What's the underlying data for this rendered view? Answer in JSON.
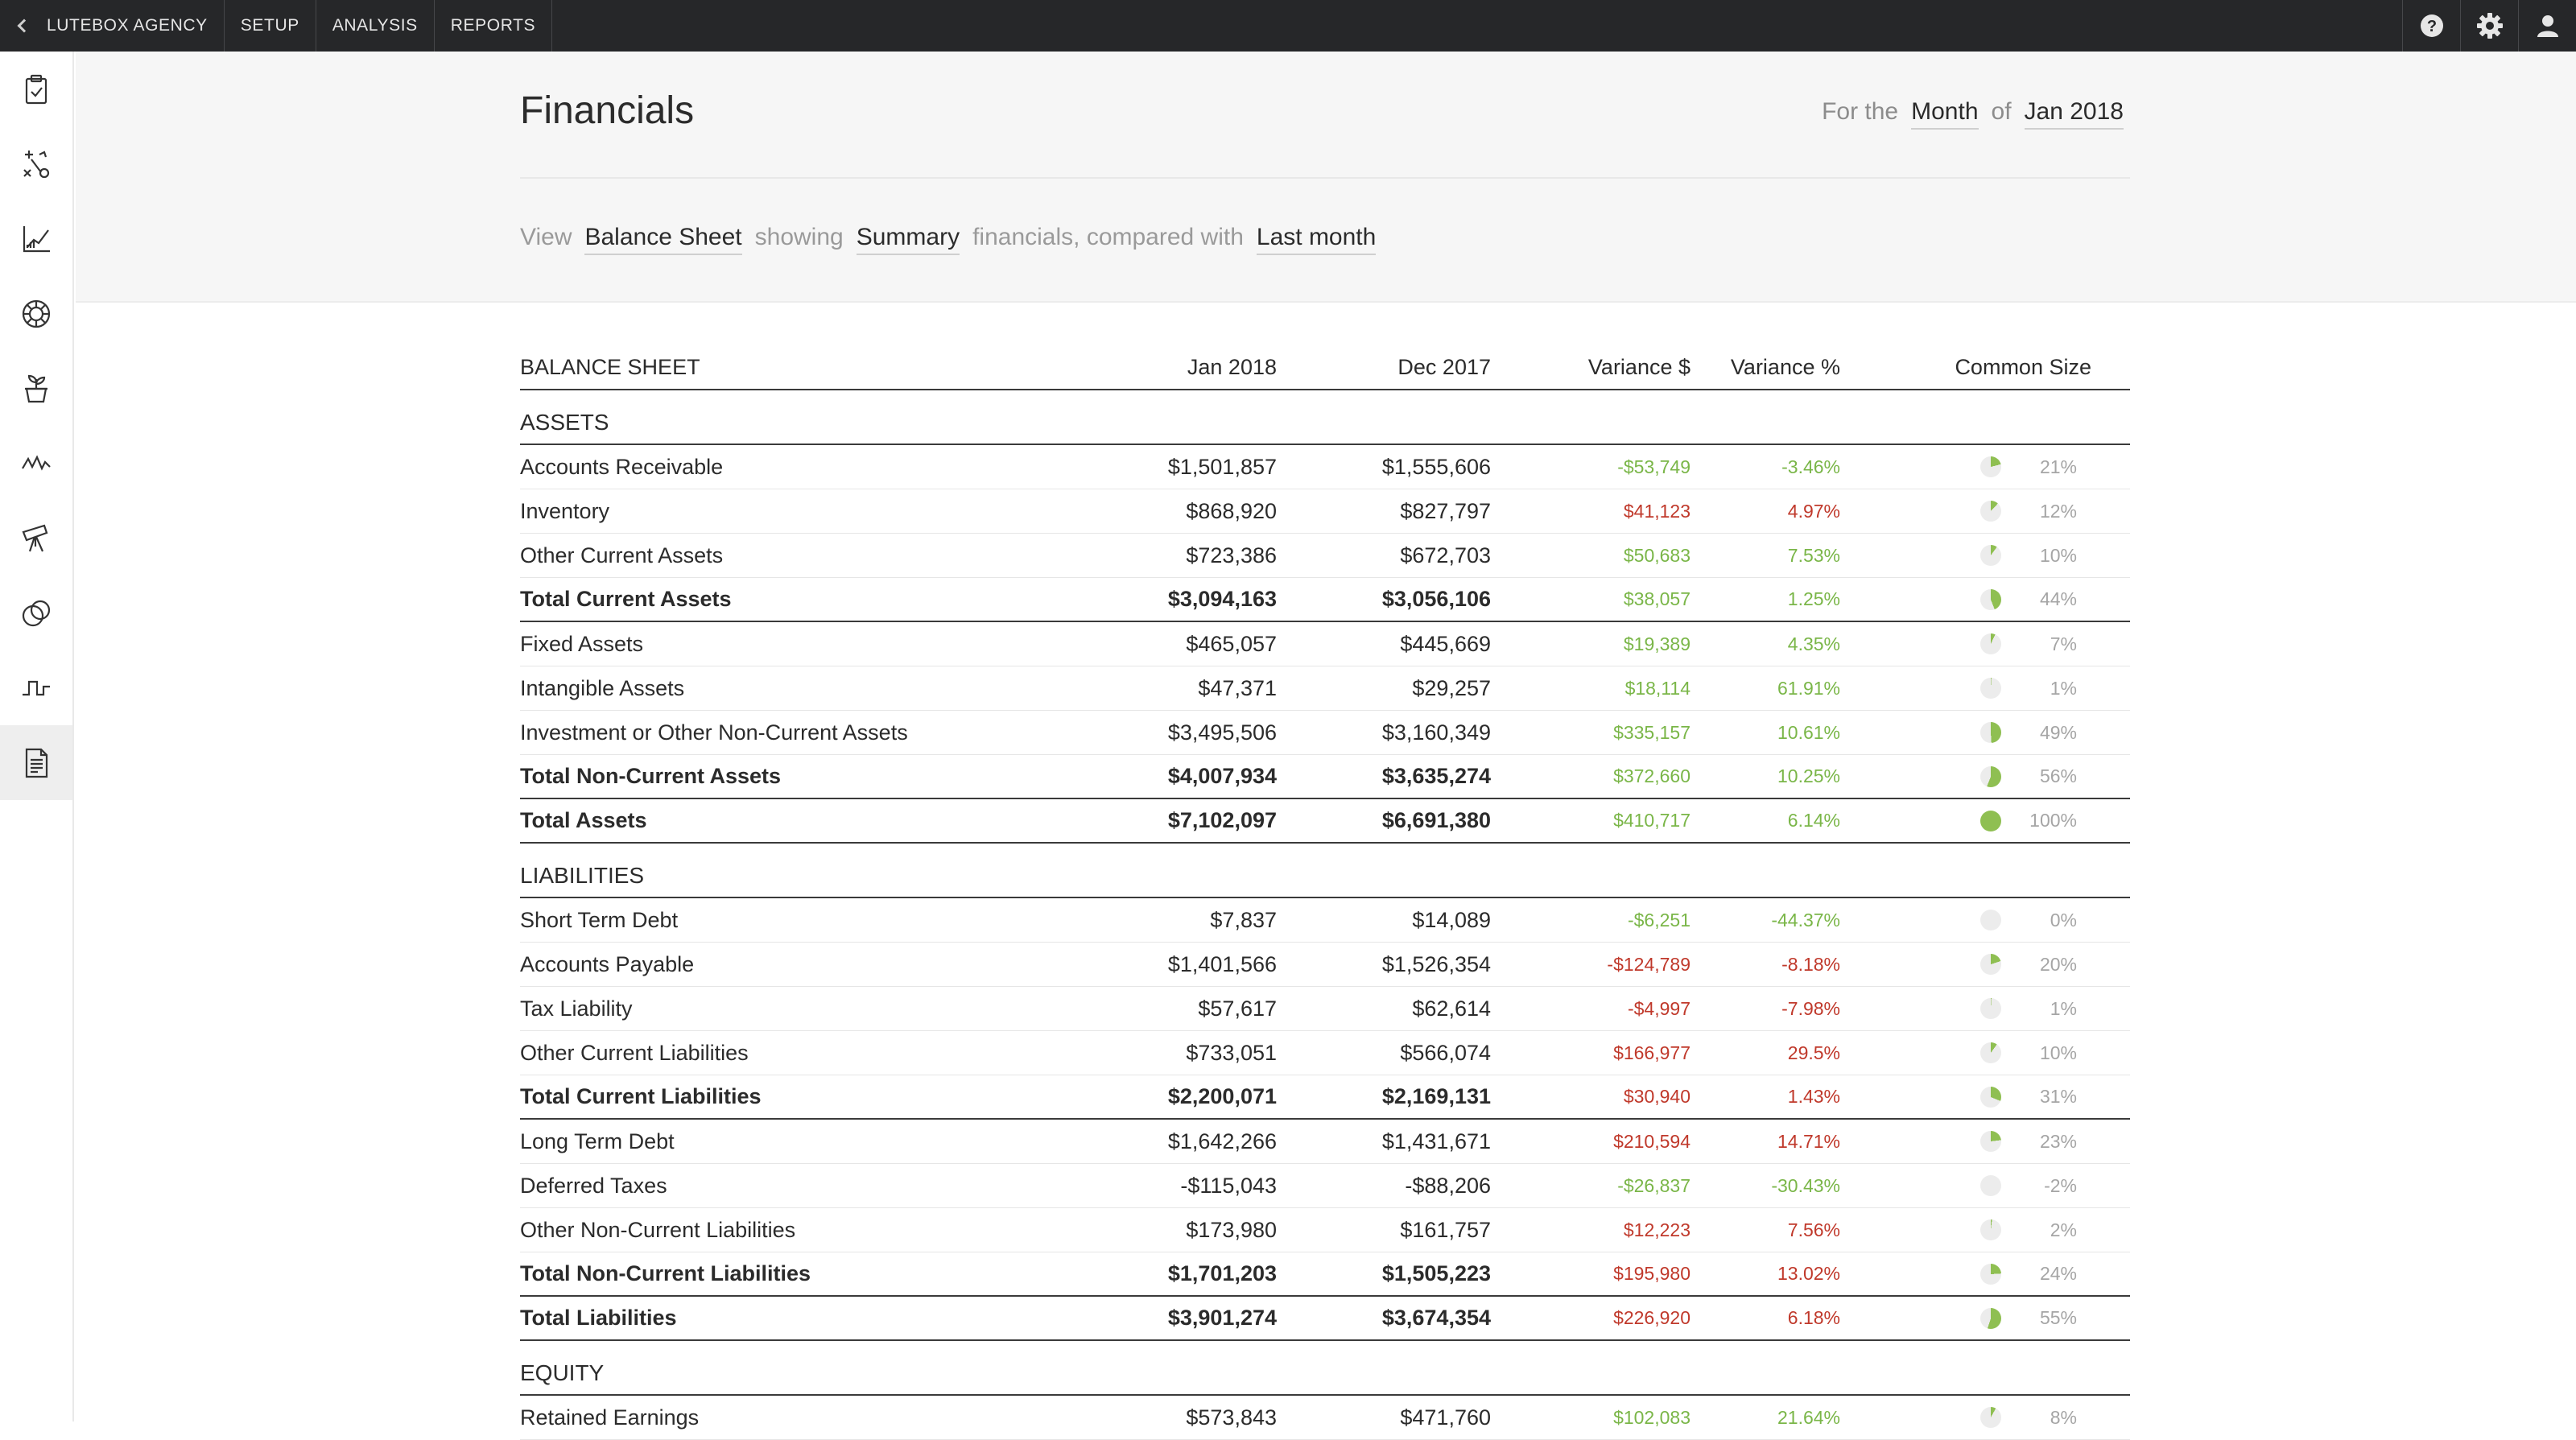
{
  "nav": {
    "back_label": "LUTEBOX AGENCY",
    "items": [
      "SETUP",
      "ANALYSIS",
      "REPORTS"
    ]
  },
  "top_icons": [
    "help-icon",
    "gear-icon",
    "user-icon"
  ],
  "sidebar_icons": [
    "clipboard-check-icon",
    "strategy-icon",
    "line-chart-icon",
    "dashboard-gauge-icon",
    "plant-pot-icon",
    "pulse-line-icon",
    "telescope-icon",
    "venn-circles-icon",
    "step-wave-icon",
    "report-document-icon"
  ],
  "header": {
    "title": "Financials",
    "period": {
      "prefix": "For the",
      "unit": "Month",
      "mid": "of",
      "value": "Jan 2018"
    },
    "view": {
      "prefix": "View",
      "report": "Balance Sheet",
      "showing": "showing",
      "mode": "Summary",
      "suffix": "financials, compared with",
      "compare": "Last month"
    }
  },
  "colors": {
    "negative": "#c0392b",
    "positive": "#7ab648",
    "pie_fill": "#8fbf52",
    "pie_bg": "#ececec"
  },
  "table": {
    "columns": [
      "BALANCE SHEET",
      "Jan 2018",
      "Dec 2017",
      "Variance $",
      "Variance %",
      "Common Size"
    ],
    "rows": [
      {
        "type": "section",
        "label": "ASSETS"
      },
      {
        "type": "item",
        "label": "Accounts Receivable",
        "cur": "$1,501,857",
        "prev": "$1,555,606",
        "var": "-$53,749",
        "pct": "-3.46%",
        "good": true,
        "cs": "21%",
        "share": 0.21
      },
      {
        "type": "item",
        "label": "Inventory",
        "cur": "$868,920",
        "prev": "$827,797",
        "var": "$41,123",
        "pct": "4.97%",
        "good": false,
        "cs": "12%",
        "share": 0.12
      },
      {
        "type": "item",
        "label": "Other Current Assets",
        "cur": "$723,386",
        "prev": "$672,703",
        "var": "$50,683",
        "pct": "7.53%",
        "good": true,
        "cs": "10%",
        "share": 0.1
      },
      {
        "type": "total",
        "label": "Total Current Assets",
        "cur": "$3,094,163",
        "prev": "$3,056,106",
        "var": "$38,057",
        "pct": "1.25%",
        "good": true,
        "cs": "44%",
        "share": 0.44
      },
      {
        "type": "item",
        "label": "Fixed Assets",
        "cur": "$465,057",
        "prev": "$445,669",
        "var": "$19,389",
        "pct": "4.35%",
        "good": true,
        "cs": "7%",
        "share": 0.07
      },
      {
        "type": "item",
        "label": "Intangible Assets",
        "cur": "$47,371",
        "prev": "$29,257",
        "var": "$18,114",
        "pct": "61.91%",
        "good": true,
        "cs": "1%",
        "share": 0.01
      },
      {
        "type": "item",
        "label": "Investment or Other Non-Current Assets",
        "cur": "$3,495,506",
        "prev": "$3,160,349",
        "var": "$335,157",
        "pct": "10.61%",
        "good": true,
        "cs": "49%",
        "share": 0.49
      },
      {
        "type": "total",
        "label": "Total Non-Current Assets",
        "cur": "$4,007,934",
        "prev": "$3,635,274",
        "var": "$372,660",
        "pct": "10.25%",
        "good": true,
        "cs": "56%",
        "share": 0.56
      },
      {
        "type": "total",
        "label": "Total Assets",
        "cur": "$7,102,097",
        "prev": "$6,691,380",
        "var": "$410,717",
        "pct": "6.14%",
        "good": true,
        "cs": "100%",
        "share": 1.0
      },
      {
        "type": "section",
        "label": "LIABILITIES"
      },
      {
        "type": "item",
        "label": "Short Term Debt",
        "cur": "$7,837",
        "prev": "$14,089",
        "var": "-$6,251",
        "pct": "-44.37%",
        "good": true,
        "cs": "0%",
        "share": 0.0
      },
      {
        "type": "item",
        "label": "Accounts Payable",
        "cur": "$1,401,566",
        "prev": "$1,526,354",
        "var": "-$124,789",
        "pct": "-8.18%",
        "good": false,
        "cs": "20%",
        "share": 0.2
      },
      {
        "type": "item",
        "label": "Tax Liability",
        "cur": "$57,617",
        "prev": "$62,614",
        "var": "-$4,997",
        "pct": "-7.98%",
        "good": false,
        "cs": "1%",
        "share": 0.01
      },
      {
        "type": "item",
        "label": "Other Current Liabilities",
        "cur": "$733,051",
        "prev": "$566,074",
        "var": "$166,977",
        "pct": "29.5%",
        "good": false,
        "cs": "10%",
        "share": 0.1
      },
      {
        "type": "total",
        "label": "Total Current Liabilities",
        "cur": "$2,200,071",
        "prev": "$2,169,131",
        "var": "$30,940",
        "pct": "1.43%",
        "good": false,
        "cs": "31%",
        "share": 0.31
      },
      {
        "type": "item",
        "label": "Long Term Debt",
        "cur": "$1,642,266",
        "prev": "$1,431,671",
        "var": "$210,594",
        "pct": "14.71%",
        "good": false,
        "cs": "23%",
        "share": 0.23
      },
      {
        "type": "item",
        "label": "Deferred Taxes",
        "cur": "-$115,043",
        "prev": "-$88,206",
        "var": "-$26,837",
        "pct": "-30.43%",
        "good": true,
        "cs": "-2%",
        "share": 0.0
      },
      {
        "type": "item",
        "label": "Other Non-Current Liabilities",
        "cur": "$173,980",
        "prev": "$161,757",
        "var": "$12,223",
        "pct": "7.56%",
        "good": false,
        "cs": "2%",
        "share": 0.02
      },
      {
        "type": "total",
        "label": "Total Non-Current Liabilities",
        "cur": "$1,701,203",
        "prev": "$1,505,223",
        "var": "$195,980",
        "pct": "13.02%",
        "good": false,
        "cs": "24%",
        "share": 0.24
      },
      {
        "type": "total",
        "label": "Total Liabilities",
        "cur": "$3,901,274",
        "prev": "$3,674,354",
        "var": "$226,920",
        "pct": "6.18%",
        "good": false,
        "cs": "55%",
        "share": 0.55
      },
      {
        "type": "section",
        "label": "EQUITY"
      },
      {
        "type": "item",
        "label": "Retained Earnings",
        "cur": "$573,843",
        "prev": "$471,760",
        "var": "$102,083",
        "pct": "21.64%",
        "good": true,
        "cs": "8%",
        "share": 0.08
      }
    ]
  }
}
